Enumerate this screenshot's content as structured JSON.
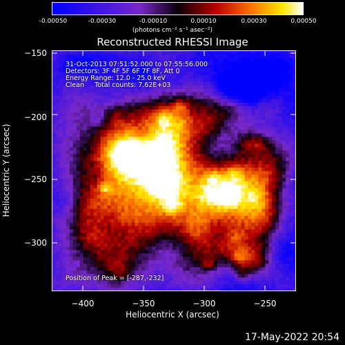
{
  "colorbar": {
    "ticks": [
      "-0.00050",
      "-0.00030",
      "-0.00010",
      "0.00010",
      "0.00030",
      "0.00050"
    ],
    "label_text": "(photons cm⁻² s⁻¹ asec⁻²)"
  },
  "title": "Reconstructed RHESSI Image",
  "info": {
    "line1": "31-Oct-2013 07:51:52.000 to 07:55:56.000",
    "line2": "Detectors: 3F 4F 5F 6F 7F 8F, Att 0",
    "line3": "Energy Range: 12.0 - 25.0 keV",
    "line4": "Clean     Total counts: 7.62E+03",
    "peak": "Position of Peak = [-287,-232]"
  },
  "xlabel": "Heliocentric X (arcsec)",
  "ylabel": "Heliocentric Y (arcsec)",
  "timestamp": "17-May-2022 20:54",
  "chart_data": {
    "type": "heatmap",
    "title": "Reconstructed RHESSI Image",
    "xlabel": "Heliocentric X (arcsec)",
    "ylabel": "Heliocentric Y (arcsec)",
    "xlim": [
      -422,
      -229
    ],
    "ylim": [
      -342,
      -145
    ],
    "xticks": [
      -400,
      -350,
      -300,
      -250
    ],
    "yticks": [
      -150,
      -200,
      -250,
      -300
    ],
    "colorbar_range": [
      -0.0005,
      0.0005
    ],
    "colorbar_label": "(photons cm^-2 s^-1 asec^-2)",
    "peak_position": [
      -287,
      -232
    ],
    "colormap": "blue-purple-black-red-orange-yellow-white",
    "grid": false
  }
}
